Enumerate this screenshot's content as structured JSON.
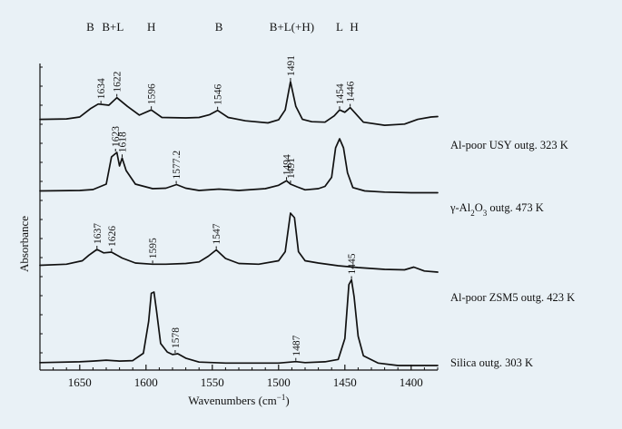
{
  "chart_data": {
    "type": "line",
    "xlabel_main": "Wavenumbers (cm",
    "xlabel_sup": "−1",
    "xlabel_tail": ")",
    "ylabel": "Absorbance",
    "xlim": [
      1680,
      1380
    ],
    "x_reversed": true,
    "xticks": [
      1650,
      1600,
      1550,
      1500,
      1450,
      1400
    ],
    "band_labels": [
      {
        "x": 1642,
        "text": "B"
      },
      {
        "x": 1625,
        "text": "B+L"
      },
      {
        "x": 1596,
        "text": "H"
      },
      {
        "x": 1545,
        "text": "B"
      },
      {
        "x": 1490,
        "text": "B+L(+H)"
      },
      {
        "x": 1454,
        "text": "L"
      },
      {
        "x": 1443,
        "text": "H"
      }
    ],
    "series": [
      {
        "name": "Al-poor USY outg. 323 K",
        "name_parts": [
          {
            "t": "Al-poor USY outg. 323 K"
          }
        ],
        "baseline": 0.4,
        "points": [
          [
            1680,
            0.4
          ],
          [
            1660,
            0.42
          ],
          [
            1650,
            0.5
          ],
          [
            1642,
            0.85
          ],
          [
            1636,
            1.05
          ],
          [
            1628,
            1.0
          ],
          [
            1622,
            1.32
          ],
          [
            1614,
            0.95
          ],
          [
            1605,
            0.58
          ],
          [
            1596,
            0.8
          ],
          [
            1588,
            0.48
          ],
          [
            1570,
            0.46
          ],
          [
            1560,
            0.48
          ],
          [
            1552,
            0.6
          ],
          [
            1546,
            0.78
          ],
          [
            1538,
            0.48
          ],
          [
            1525,
            0.34
          ],
          [
            1508,
            0.25
          ],
          [
            1500,
            0.38
          ],
          [
            1495,
            0.8
          ],
          [
            1491,
            2.0
          ],
          [
            1487,
            0.95
          ],
          [
            1482,
            0.4
          ],
          [
            1475,
            0.3
          ],
          [
            1465,
            0.28
          ],
          [
            1458,
            0.55
          ],
          [
            1454,
            0.8
          ],
          [
            1450,
            0.7
          ],
          [
            1446,
            0.9
          ],
          [
            1442,
            0.65
          ],
          [
            1436,
            0.28
          ],
          [
            1420,
            0.15
          ],
          [
            1405,
            0.2
          ],
          [
            1395,
            0.4
          ],
          [
            1385,
            0.5
          ],
          [
            1380,
            0.52
          ]
        ],
        "peaks": [
          {
            "x": 1634,
            "y": 1.03,
            "label": "1634"
          },
          {
            "x": 1622,
            "y": 1.32,
            "label": "1622"
          },
          {
            "x": 1596,
            "y": 0.8,
            "label": "1596"
          },
          {
            "x": 1546,
            "y": 0.78,
            "label": "1546"
          },
          {
            "x": 1491,
            "y": 2.0,
            "label": "1491"
          },
          {
            "x": 1454,
            "y": 0.8,
            "label": "1454"
          },
          {
            "x": 1446,
            "y": 0.9,
            "label": "1446"
          }
        ]
      },
      {
        "name": "γ-Al2O3 outg. 473 K",
        "name_parts": [
          {
            "t": "γ-Al"
          },
          {
            "t": "2",
            "sub": true
          },
          {
            "t": "O"
          },
          {
            "t": "3",
            "sub": true
          },
          {
            "t": " outg. 473 K"
          }
        ],
        "baseline": 0.3,
        "points": [
          [
            1680,
            0.3
          ],
          [
            1650,
            0.32
          ],
          [
            1640,
            0.36
          ],
          [
            1630,
            0.6
          ],
          [
            1626,
            1.8
          ],
          [
            1622,
            2.0
          ],
          [
            1620,
            1.4
          ],
          [
            1618,
            1.75
          ],
          [
            1615,
            1.2
          ],
          [
            1608,
            0.6
          ],
          [
            1595,
            0.4
          ],
          [
            1585,
            0.42
          ],
          [
            1577,
            0.58
          ],
          [
            1570,
            0.42
          ],
          [
            1560,
            0.32
          ],
          [
            1545,
            0.38
          ],
          [
            1530,
            0.32
          ],
          [
            1510,
            0.4
          ],
          [
            1500,
            0.55
          ],
          [
            1494,
            0.75
          ],
          [
            1491,
            0.6
          ],
          [
            1486,
            0.48
          ],
          [
            1480,
            0.35
          ],
          [
            1470,
            0.4
          ],
          [
            1465,
            0.5
          ],
          [
            1460,
            0.9
          ],
          [
            1457,
            2.2
          ],
          [
            1454,
            2.6
          ],
          [
            1451,
            2.2
          ],
          [
            1448,
            1.1
          ],
          [
            1444,
            0.45
          ],
          [
            1435,
            0.3
          ],
          [
            1420,
            0.25
          ],
          [
            1400,
            0.22
          ],
          [
            1380,
            0.22
          ]
        ],
        "peaks": [
          {
            "x": 1623,
            "y": 2.0,
            "label": "1623"
          },
          {
            "x": 1618,
            "y": 1.75,
            "label": "1618"
          },
          {
            "x": 1577.2,
            "y": 0.58,
            "label": "1577.2"
          },
          {
            "x": 1494,
            "y": 0.75,
            "label": "1494"
          },
          {
            "x": 1491,
            "y": 0.6,
            "label": "1491"
          }
        ]
      },
      {
        "name": "Al-poor ZSM5 outg. 423 K",
        "name_parts": [
          {
            "t": "Al-poor ZSM5 outg. 423 K"
          }
        ],
        "baseline": 0.3,
        "points": [
          [
            1680,
            0.3
          ],
          [
            1660,
            0.35
          ],
          [
            1648,
            0.5
          ],
          [
            1643,
            0.75
          ],
          [
            1637,
            1.0
          ],
          [
            1632,
            0.85
          ],
          [
            1626,
            0.88
          ],
          [
            1618,
            0.62
          ],
          [
            1608,
            0.4
          ],
          [
            1595,
            0.35
          ],
          [
            1585,
            0.35
          ],
          [
            1570,
            0.38
          ],
          [
            1560,
            0.45
          ],
          [
            1553,
            0.7
          ],
          [
            1547,
            0.98
          ],
          [
            1540,
            0.6
          ],
          [
            1530,
            0.38
          ],
          [
            1515,
            0.35
          ],
          [
            1500,
            0.5
          ],
          [
            1495,
            0.9
          ],
          [
            1491,
            2.6
          ],
          [
            1488,
            2.4
          ],
          [
            1485,
            0.9
          ],
          [
            1480,
            0.5
          ],
          [
            1470,
            0.4
          ],
          [
            1455,
            0.28
          ],
          [
            1440,
            0.2
          ],
          [
            1420,
            0.12
          ],
          [
            1405,
            0.1
          ],
          [
            1398,
            0.22
          ],
          [
            1390,
            0.05
          ],
          [
            1380,
            0.0
          ]
        ],
        "peaks": [
          {
            "x": 1637,
            "y": 1.0,
            "label": "1637"
          },
          {
            "x": 1626,
            "y": 0.88,
            "label": "1626"
          },
          {
            "x": 1595,
            "y": 0.35,
            "label": "1595"
          },
          {
            "x": 1547,
            "y": 0.98,
            "label": "1547"
          }
        ]
      },
      {
        "name": "Silica outg. 303 K",
        "name_parts": [
          {
            "t": "Silica outg. 303 K"
          }
        ],
        "baseline": 0.12,
        "points": [
          [
            1680,
            0.12
          ],
          [
            1650,
            0.15
          ],
          [
            1640,
            0.18
          ],
          [
            1630,
            0.22
          ],
          [
            1620,
            0.18
          ],
          [
            1610,
            0.2
          ],
          [
            1602,
            0.5
          ],
          [
            1598,
            1.8
          ],
          [
            1596,
            2.95
          ],
          [
            1594,
            3.0
          ],
          [
            1592,
            2.2
          ],
          [
            1589,
            0.9
          ],
          [
            1584,
            0.55
          ],
          [
            1580,
            0.45
          ],
          [
            1576,
            0.48
          ],
          [
            1570,
            0.3
          ],
          [
            1560,
            0.14
          ],
          [
            1540,
            0.1
          ],
          [
            1520,
            0.1
          ],
          [
            1500,
            0.1
          ],
          [
            1487,
            0.16
          ],
          [
            1480,
            0.12
          ],
          [
            1465,
            0.15
          ],
          [
            1455,
            0.25
          ],
          [
            1450,
            1.1
          ],
          [
            1447,
            3.3
          ],
          [
            1445,
            3.5
          ],
          [
            1443,
            2.8
          ],
          [
            1440,
            1.2
          ],
          [
            1436,
            0.4
          ],
          [
            1425,
            0.1
          ],
          [
            1410,
            0.0
          ],
          [
            1400,
            0.0
          ],
          [
            1380,
            0.0
          ]
        ],
        "peaks": [
          {
            "x": 1578,
            "y": 0.48,
            "label": "1578"
          },
          {
            "x": 1487,
            "y": 0.16,
            "label": "1487"
          },
          {
            "x": 1445,
            "y": 3.5,
            "label": "1445"
          }
        ]
      }
    ]
  }
}
